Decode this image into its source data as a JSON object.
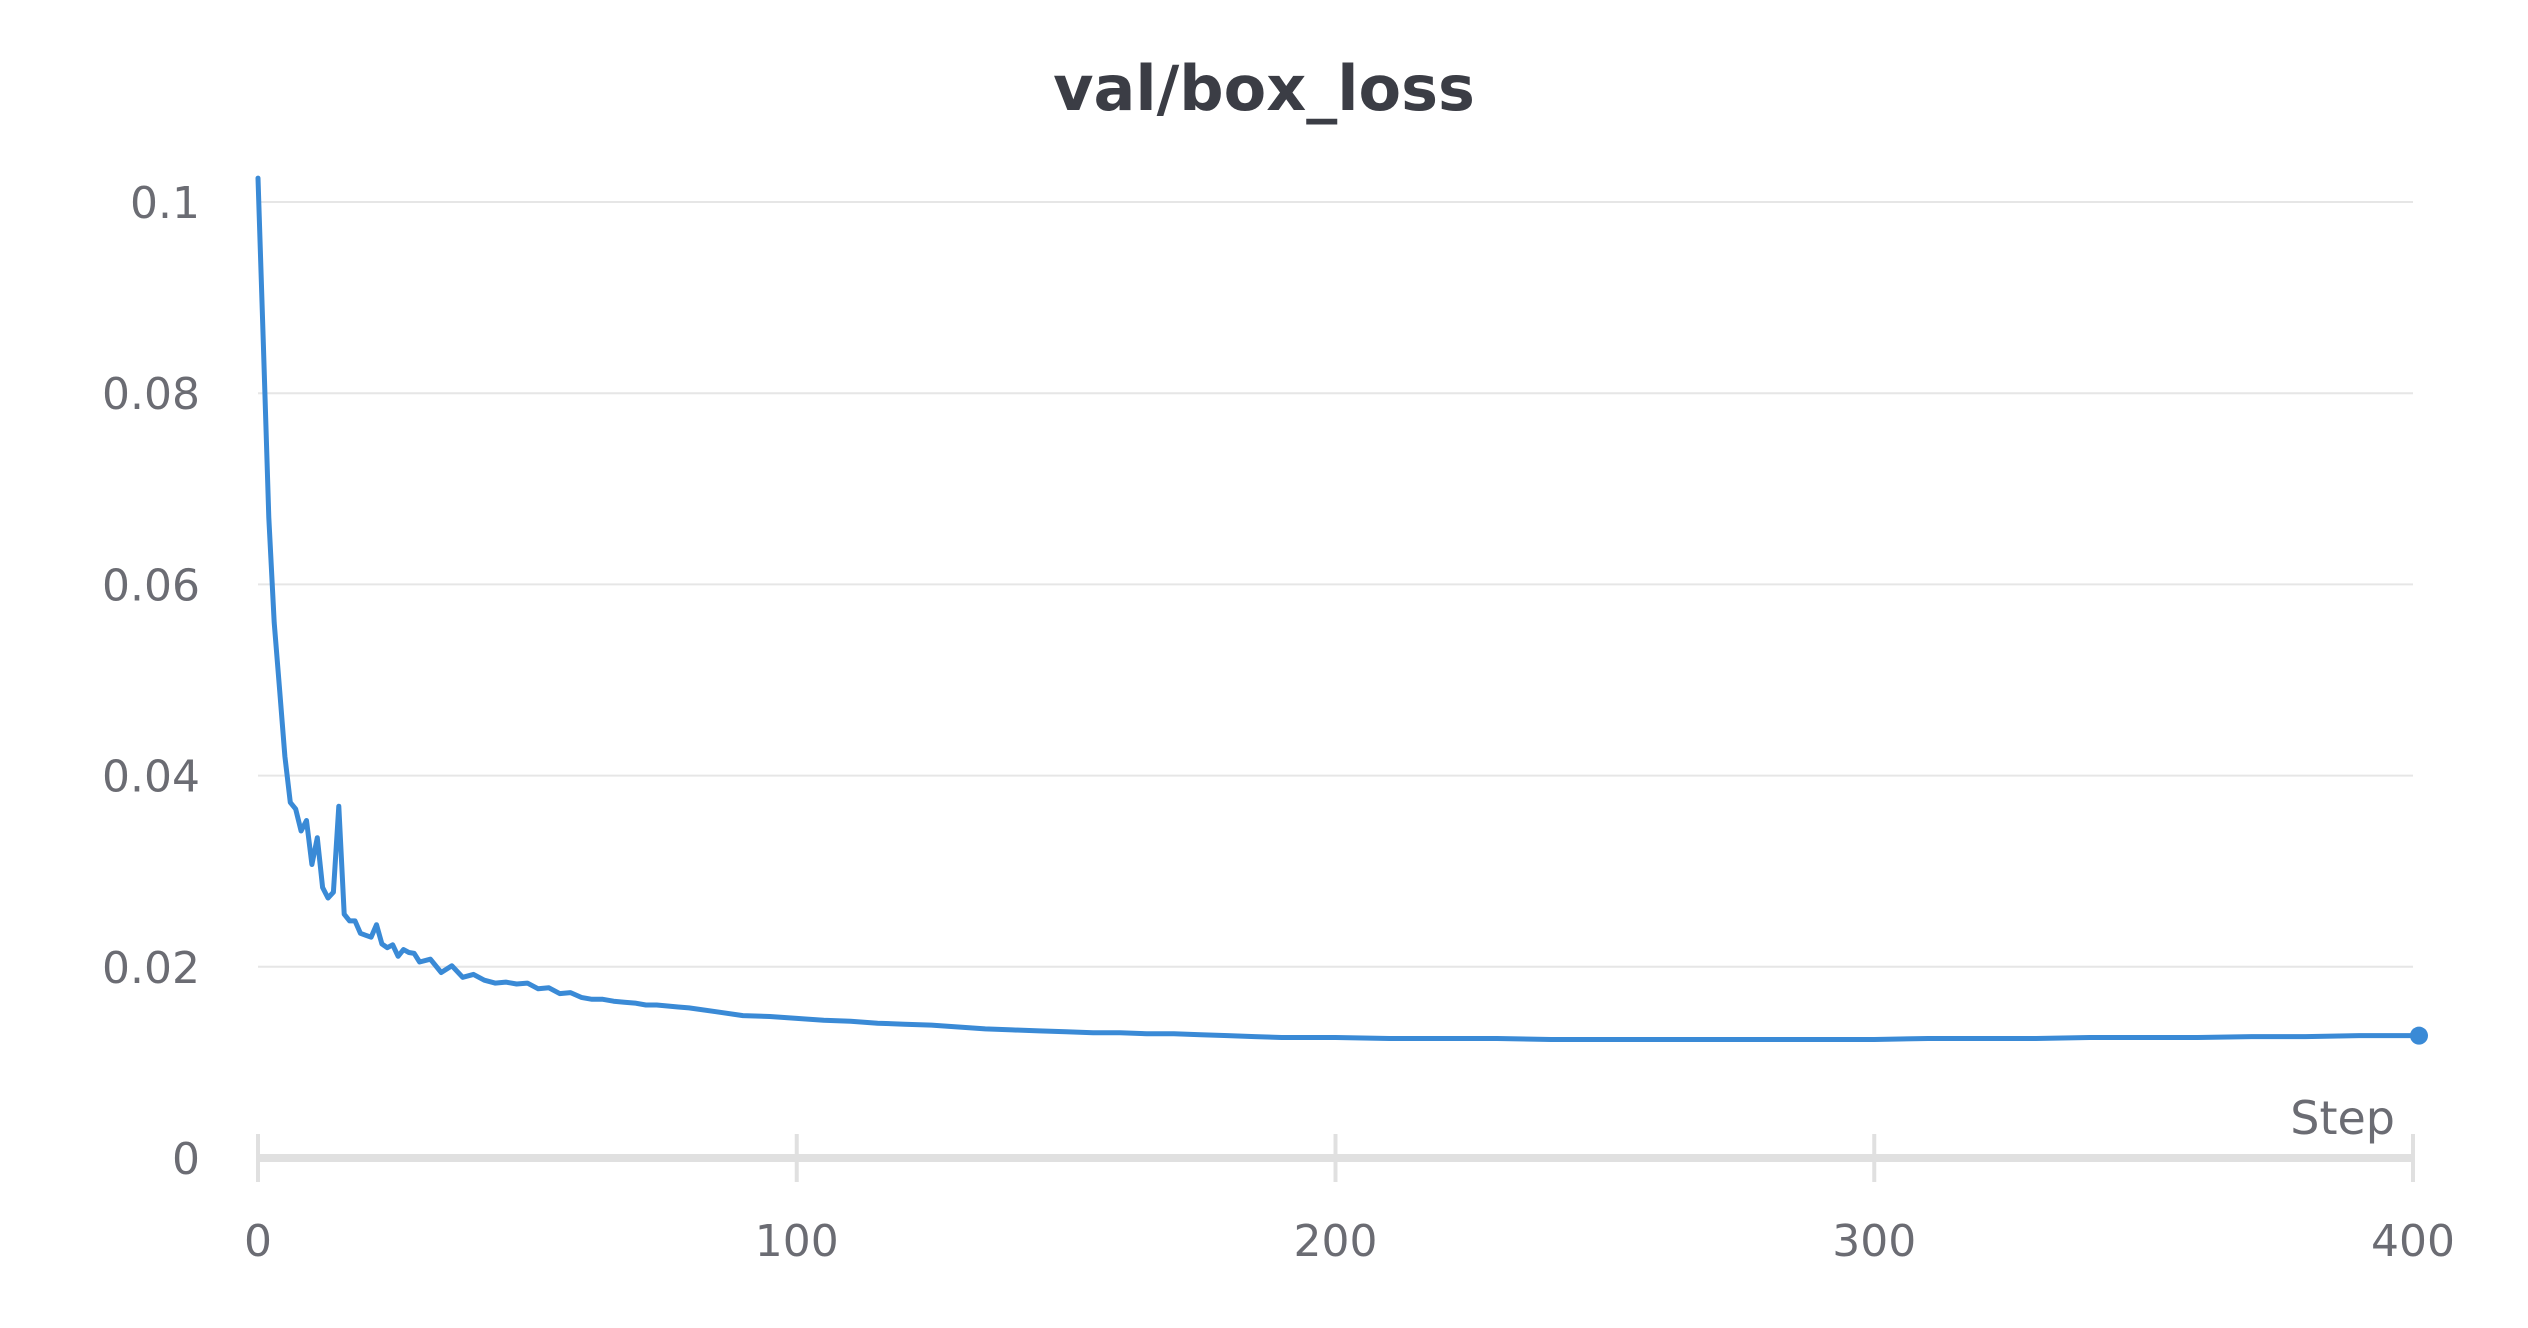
{
  "chart_data": {
    "type": "line",
    "title": "val/box_loss",
    "xlabel": "Step",
    "ylabel": "",
    "xlim": [
      0,
      400
    ],
    "ylim": [
      0,
      0.1
    ],
    "x_ticks": [
      "0",
      "100",
      "200",
      "300",
      "400"
    ],
    "y_ticks": [
      "0",
      "0.02",
      "0.04",
      "0.06",
      "0.08",
      "0.1"
    ],
    "grid": true,
    "line_color": "#3a8ad6",
    "series": [
      {
        "x": [
          0,
          1,
          2,
          3,
          4,
          5,
          6,
          7,
          8,
          9,
          10,
          11,
          12,
          13,
          14,
          15,
          16,
          17,
          18,
          19,
          20,
          21,
          22,
          23,
          24,
          25,
          26,
          27,
          28,
          29,
          30,
          32,
          34,
          36,
          38,
          40,
          42,
          44,
          46,
          48,
          50,
          52,
          54,
          56,
          58,
          60,
          62,
          64,
          66,
          68,
          70,
          72,
          74,
          76,
          78,
          80,
          85,
          90,
          95,
          100,
          105,
          110,
          115,
          120,
          125,
          130,
          135,
          140,
          145,
          150,
          155,
          160,
          165,
          170,
          175,
          180,
          185,
          190,
          195,
          200,
          210,
          220,
          230,
          240,
          250,
          260,
          270,
          280,
          290,
          300,
          310,
          320,
          330,
          340,
          350,
          360,
          370,
          380,
          390,
          400
        ],
        "y": [
          0.1025,
          0.085,
          0.067,
          0.056,
          0.049,
          0.042,
          0.0372,
          0.0365,
          0.0342,
          0.0353,
          0.0307,
          0.0335,
          0.0283,
          0.0272,
          0.0278,
          0.0368,
          0.0255,
          0.0248,
          0.0248,
          0.0235,
          0.0233,
          0.0231,
          0.0244,
          0.0224,
          0.022,
          0.0223,
          0.0211,
          0.0218,
          0.0215,
          0.0214,
          0.0205,
          0.0208,
          0.0194,
          0.0201,
          0.0189,
          0.0192,
          0.0186,
          0.0183,
          0.0184,
          0.0182,
          0.0183,
          0.0177,
          0.0178,
          0.0172,
          0.0173,
          0.0168,
          0.0166,
          0.0166,
          0.0164,
          0.0163,
          0.0162,
          0.016,
          0.016,
          0.0159,
          0.0158,
          0.0157,
          0.0153,
          0.0149,
          0.0148,
          0.0146,
          0.0144,
          0.0143,
          0.0141,
          0.014,
          0.0139,
          0.0137,
          0.0135,
          0.0134,
          0.0133,
          0.0132,
          0.0131,
          0.0131,
          0.013,
          0.013,
          0.0129,
          0.0128,
          0.0127,
          0.0126,
          0.0126,
          0.0126,
          0.0125,
          0.0125,
          0.0125,
          0.0124,
          0.0124,
          0.0124,
          0.0124,
          0.0124,
          0.0124,
          0.0124,
          0.0125,
          0.0125,
          0.0125,
          0.0126,
          0.0126,
          0.0126,
          0.0127,
          0.0127,
          0.0128,
          0.0128
        ]
      }
    ]
  }
}
